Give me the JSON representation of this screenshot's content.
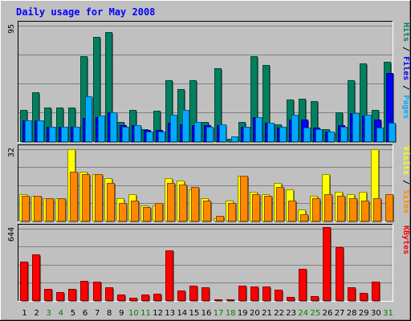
{
  "chart_data": {
    "type": "bar",
    "title": "Daily usage for May 2008",
    "categories": [
      "1",
      "2",
      "3",
      "4",
      "5",
      "6",
      "7",
      "8",
      "9",
      "10",
      "11",
      "12",
      "13",
      "14",
      "15",
      "16",
      "17",
      "18",
      "19",
      "20",
      "21",
      "22",
      "23",
      "24",
      "25",
      "26",
      "27",
      "28",
      "29",
      "30",
      "31"
    ],
    "weekend_categories": [
      "3",
      "4",
      "10",
      "11",
      "17",
      "18",
      "24",
      "25",
      "31"
    ],
    "panels": [
      {
        "id": "hits",
        "ymax_label": "95",
        "ymax": 95,
        "right_label_parts": [
          {
            "text": "Pages",
            "color": "#00aaff"
          },
          {
            "text": "Files",
            "color": "#0000ff"
          },
          {
            "text": "Hits",
            "color": "#008060"
          }
        ],
        "series": [
          {
            "name": "Hits",
            "color": "#008060",
            "values": [
              26,
              40,
              28,
              28,
              28,
              70,
              86,
              90,
              16,
              26,
              10,
              25,
              50,
              43,
              50,
              16,
              60,
              2,
              16,
              70,
              63,
              14,
              34,
              35,
              33,
              10,
              24,
              50,
              64,
              26,
              65
            ]
          },
          {
            "name": "Files",
            "color": "#0000ff",
            "values": [
              17,
              17,
              12,
              12,
              12,
              19,
              20,
              24,
              13,
              13,
              9,
              9,
              15,
              14,
              13,
              13,
              13,
              0,
              12,
              20,
              15,
              11,
              18,
              18,
              11,
              8,
              13,
              23,
              21,
              18,
              56
            ]
          },
          {
            "name": "Pages",
            "color": "#00aaff",
            "values": [
              17,
              17,
              12,
              12,
              12,
              37,
              21,
              24,
              12,
              13,
              8,
              8,
              22,
              26,
              16,
              12,
              14,
              4,
              12,
              20,
              15,
              12,
              22,
              11,
              10,
              8,
              12,
              23,
              22,
              11,
              15
            ]
          }
        ]
      },
      {
        "id": "visits",
        "ymax_label": "32",
        "ymax": 32,
        "right_label_parts": [
          {
            "text": "Sites",
            "color": "#ff8800"
          },
          {
            "text": "Visits",
            "color": "#ffff00"
          }
        ],
        "series": [
          {
            "name": "Visits",
            "color": "#ffff00",
            "values": [
              12,
              11,
              10,
              10,
              32,
              22,
              21,
              19,
              10,
              12,
              7,
              7,
              19,
              18,
              14,
              10,
              1,
              9,
              20,
              13,
              12,
              17,
              14,
              5,
              11,
              21,
              13,
              12,
              13,
              32,
              0
            ]
          },
          {
            "name": "Sites",
            "color": "#ff8800",
            "values": [
              11,
              11,
              10,
              10,
              22,
              21,
              21,
              17,
              8,
              9,
              6,
              8,
              17,
              16,
              15,
              9,
              2,
              8,
              20,
              12,
              11,
              15,
              9,
              3,
              10,
              12,
              11,
              10,
              9,
              10,
              12
            ]
          }
        ]
      },
      {
        "id": "kbytes",
        "ymax_label": "644",
        "ymax": 644,
        "right_label_parts": [
          {
            "text": "KBytes",
            "color": "#ff0000"
          }
        ],
        "series": [
          {
            "name": "KBytes",
            "color": "#ff0000",
            "values": [
              346,
              415,
              100,
              75,
              100,
              173,
              167,
              115,
              50,
              20,
              50,
              60,
              449,
              88,
              130,
              115,
              10,
              10,
              130,
              125,
              125,
              95,
              30,
              284,
              35,
              660,
              480,
              115,
              65,
              170,
              0
            ]
          }
        ]
      }
    ]
  },
  "colors": {
    "background": "#c0c0c0",
    "plot_background": "#c0c0c0",
    "grid": "#808080",
    "title": "#0000ff",
    "weekday_label": "#000000",
    "weekend_label": "#008000"
  }
}
